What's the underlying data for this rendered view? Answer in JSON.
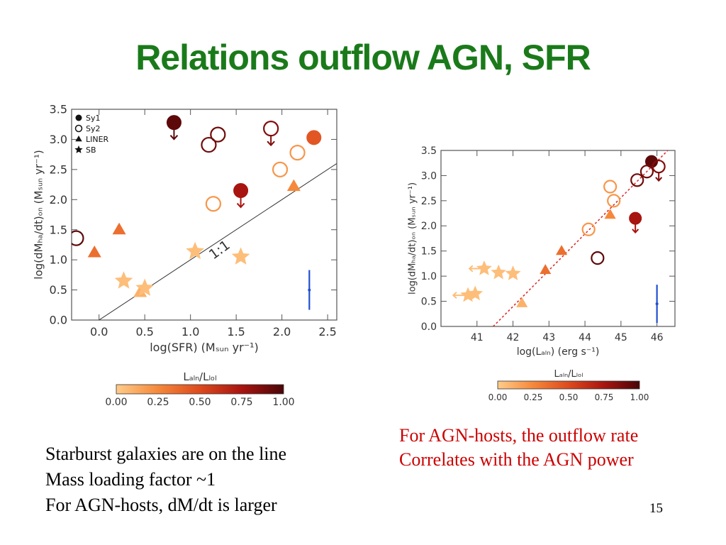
{
  "slide": {
    "title": "Relations outflow AGN, SFR",
    "page_number": "15",
    "left_text": [
      "Starburst galaxies are on the line",
      "Mass loading factor ~1",
      "For AGN-hosts, dM/dt is larger"
    ],
    "right_text": [
      "For AGN-hosts, the outflow rate",
      "Correlates with the AGN power"
    ]
  },
  "colorbar": {
    "label": "L_AGN/L_Bol",
    "ticks": [
      "0.00",
      "0.25",
      "0.50",
      "0.75",
      "1.00"
    ],
    "colors": [
      "#ffcc8a",
      "#f5883a",
      "#dd4a1e",
      "#a81410",
      "#4a0608"
    ]
  },
  "chart_data": [
    {
      "type": "scatter",
      "xlabel": "log(SFR) (M_sun yr^-1)",
      "ylabel": "log(dM_Hα/dt)_OF (M_sun yr^-1)",
      "xlim": [
        -0.3,
        2.6
      ],
      "ylim": [
        0.0,
        3.5
      ],
      "xticks": [
        "0.0",
        "0.5",
        "1.0",
        "1.5",
        "2.0",
        "2.5"
      ],
      "yticks": [
        "0.0",
        "0.5",
        "1.0",
        "1.5",
        "2.0",
        "2.5",
        "3.0",
        "3.5"
      ],
      "legend": {
        "placement": "top-left",
        "entries": [
          "Sy1",
          "Sy2",
          "LINER",
          "SB"
        ]
      },
      "line": {
        "label": "1:1",
        "slope": 1,
        "intercept": 0
      },
      "series": [
        {
          "name": "Sy1",
          "points": [
            {
              "x": 0.82,
              "y": 3.28,
              "frac": 0.95,
              "upper_limit": true
            },
            {
              "x": 1.55,
              "y": 2.15,
              "frac": 0.75,
              "upper_limit": true
            },
            {
              "x": 2.35,
              "y": 3.03,
              "frac": 0.45,
              "upper_limit": false
            }
          ]
        },
        {
          "name": "Sy2",
          "points": [
            {
              "x": -0.25,
              "y": 1.36,
              "frac": 0.95
            },
            {
              "x": 1.2,
              "y": 2.91,
              "frac": 0.9
            },
            {
              "x": 1.3,
              "y": 3.08,
              "frac": 0.9
            },
            {
              "x": 1.88,
              "y": 3.18,
              "frac": 0.85,
              "upper_limit": true
            },
            {
              "x": 1.25,
              "y": 1.93,
              "frac": 0.2
            },
            {
              "x": 1.98,
              "y": 2.5,
              "frac": 0.2
            },
            {
              "x": 2.17,
              "y": 2.78,
              "frac": 0.2
            }
          ]
        },
        {
          "name": "LINER",
          "points": [
            {
              "x": -0.05,
              "y": 1.12,
              "frac": 0.35
            },
            {
              "x": 0.22,
              "y": 1.5,
              "frac": 0.35
            },
            {
              "x": 2.13,
              "y": 2.22,
              "frac": 0.25
            },
            {
              "x": 0.45,
              "y": 0.46,
              "frac": 0.1
            }
          ]
        },
        {
          "name": "SB",
          "points": [
            {
              "x": 0.27,
              "y": 0.65,
              "frac": 0.05
            },
            {
              "x": 0.5,
              "y": 0.53,
              "frac": 0.05
            },
            {
              "x": 1.05,
              "y": 1.14,
              "frac": 0.05
            },
            {
              "x": 1.55,
              "y": 1.05,
              "frac": 0.05
            }
          ]
        }
      ],
      "error_bar": {
        "x": 2.3,
        "y": 0.5,
        "yerr": 0.33
      }
    },
    {
      "type": "scatter",
      "xlabel": "log(L_AGN) (erg s^-1)",
      "ylabel": "log(dM_Hα/dt)_OF (M_sun yr^-1)",
      "xlim": [
        40.0,
        46.5
      ],
      "ylim": [
        0.0,
        3.5
      ],
      "xticks": [
        "41",
        "42",
        "43",
        "44",
        "45",
        "46"
      ],
      "yticks": [
        "0.0",
        "0.5",
        "1.0",
        "1.5",
        "2.0",
        "2.5",
        "3.0",
        "3.5"
      ],
      "fit_line": {
        "style": "dotted",
        "color": "#e02020",
        "x": [
          41.45,
          46.3
        ],
        "y": [
          0.0,
          3.5
        ]
      },
      "series": [
        {
          "name": "Sy1",
          "points": [
            {
              "x": 45.4,
              "y": 2.15,
              "frac": 0.75,
              "upper_limit": true
            },
            {
              "x": 45.85,
              "y": 3.28,
              "frac": 0.95,
              "upper_limit": false
            }
          ]
        },
        {
          "name": "Sy2",
          "points": [
            {
              "x": 44.35,
              "y": 1.36,
              "frac": 0.95
            },
            {
              "x": 45.45,
              "y": 2.91,
              "frac": 0.9
            },
            {
              "x": 45.72,
              "y": 3.08,
              "frac": 0.9
            },
            {
              "x": 46.05,
              "y": 3.18,
              "frac": 0.85,
              "upper_limit": true
            },
            {
              "x": 44.1,
              "y": 1.93,
              "frac": 0.2
            },
            {
              "x": 44.8,
              "y": 2.5,
              "frac": 0.2
            },
            {
              "x": 44.7,
              "y": 2.78,
              "frac": 0.2
            }
          ]
        },
        {
          "name": "LINER",
          "points": [
            {
              "x": 42.9,
              "y": 1.12,
              "frac": 0.35
            },
            {
              "x": 43.35,
              "y": 1.5,
              "frac": 0.35
            },
            {
              "x": 44.7,
              "y": 2.22,
              "frac": 0.25
            },
            {
              "x": 42.25,
              "y": 0.46,
              "frac": 0.1
            }
          ]
        },
        {
          "name": "SB",
          "points": [
            {
              "x": 40.75,
              "y": 0.62,
              "frac": 0.05,
              "lower_limit_left": true
            },
            {
              "x": 40.95,
              "y": 0.65,
              "frac": 0.05
            },
            {
              "x": 41.2,
              "y": 1.15,
              "frac": 0.05,
              "lower_limit_left": true
            },
            {
              "x": 41.6,
              "y": 1.07,
              "frac": 0.05
            },
            {
              "x": 42.0,
              "y": 1.05,
              "frac": 0.05
            }
          ]
        }
      ],
      "error_bar": {
        "x": 46.0,
        "y": 0.45,
        "yerr": 0.38
      }
    }
  ]
}
